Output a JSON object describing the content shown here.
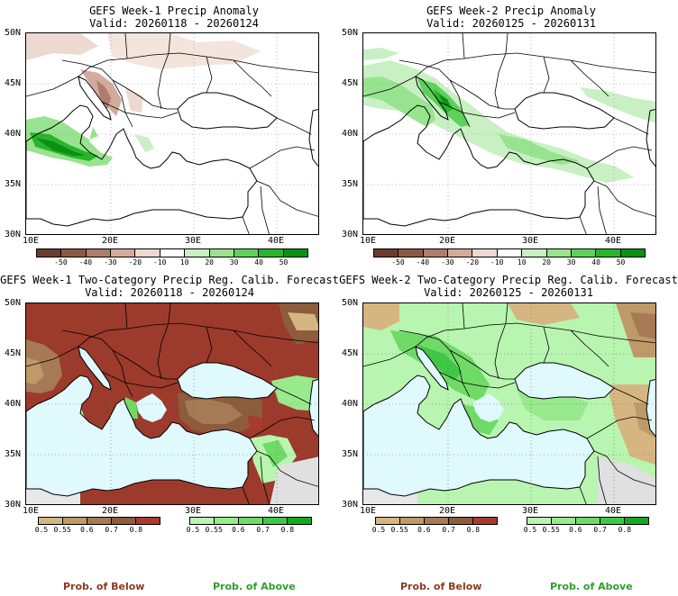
{
  "panels": [
    {
      "title_line1": "GEFS Week-1 Precip Anomaly",
      "title_line2": "Valid: 20260118 - 20260124"
    },
    {
      "title_line1": "GEFS Week-2 Precip Anomaly",
      "title_line2": "Valid: 20260125 - 20260131"
    },
    {
      "title_line1": "GEFS Week-1 Two-Category Precip Reg. Calib. Forecast",
      "title_line2": "Valid: 20260118 - 20260124"
    },
    {
      "title_line1": "GEFS Week-2 Two-Category Precip Reg. Calib. Forecast",
      "title_line2": "Valid: 20260125 - 20260131"
    }
  ],
  "axes": {
    "lat_labels": [
      "50N",
      "45N",
      "40N",
      "35N",
      "30N"
    ],
    "lon_labels": [
      "10E",
      "20E",
      "30E",
      "40E"
    ]
  },
  "anomaly_colorbar": {
    "ticks": [
      "-50",
      "-40",
      "-30",
      "-20",
      "-10",
      "10",
      "20",
      "30",
      "40",
      "50"
    ],
    "colors": [
      "#6b3d31",
      "#8e5848",
      "#b07d6c",
      "#d3ab9c",
      "#ecd9cf",
      "#ffffff",
      "#c8f0c3",
      "#98e38f",
      "#5fd15a",
      "#28b52b",
      "#0b8f15"
    ]
  },
  "prob_colorbar": {
    "below_ticks": [
      "0.5",
      "0.55",
      "0.6",
      "0.7",
      "0.8"
    ],
    "above_ticks": [
      "0.5",
      "0.55",
      "0.6",
      "0.7",
      "0.8"
    ],
    "below_colors": [
      "#d6b680",
      "#bf9967",
      "#a57a55",
      "#8c5c3c",
      "#a83a2e"
    ],
    "above_colors": [
      "#b8f5b0",
      "#98ea8c",
      "#6fdb66",
      "#3fc845",
      "#15a91f"
    ]
  },
  "labels": {
    "prob_below": "Prob. of Below",
    "prob_above": "Prob. of Above"
  },
  "colors": {
    "sea": "#dff9fc",
    "land_brown": "#9c3a2c",
    "land_green": "#90e586",
    "label_below": "#8b3a1c",
    "label_above": "#2ca02c"
  }
}
